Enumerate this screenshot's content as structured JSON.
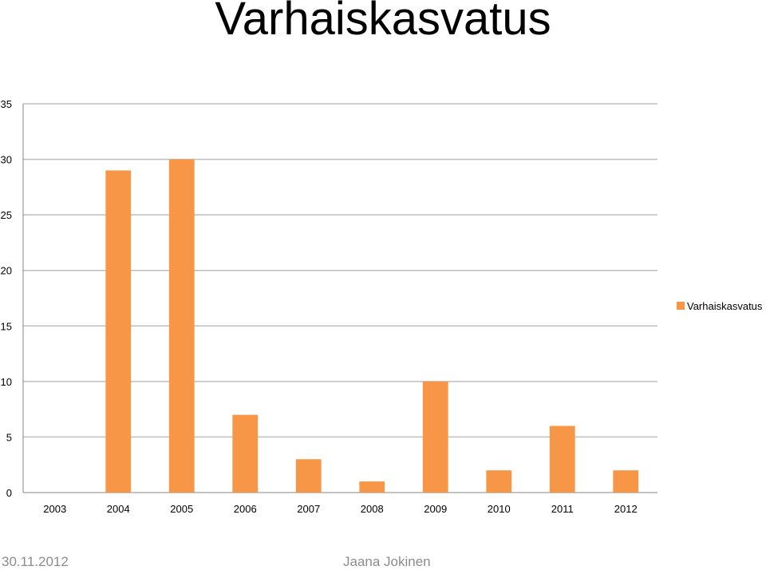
{
  "slide": {
    "title": "Varhaiskasvatus",
    "footer_date": "30.11.2012",
    "footer_author": "Jaana Jokinen"
  },
  "chart_data": {
    "type": "bar",
    "categories": [
      "2003",
      "2004",
      "2005",
      "2006",
      "2007",
      "2008",
      "2009",
      "2010",
      "2011",
      "2012"
    ],
    "series": [
      {
        "name": "Varhaiskasvatus",
        "values": [
          0,
          29,
          30,
          7,
          3,
          1,
          10,
          2,
          6,
          2
        ],
        "color": "#f79646"
      }
    ],
    "title": "",
    "xlabel": "",
    "ylabel": "",
    "ylim": [
      0,
      35
    ],
    "yticks": [
      0,
      5,
      10,
      15,
      20,
      25,
      30,
      35
    ],
    "grid": true,
    "legend": "right",
    "colors": {
      "bar": "#f79646",
      "grid": "#bfbfbf",
      "axis": "#868686"
    }
  }
}
